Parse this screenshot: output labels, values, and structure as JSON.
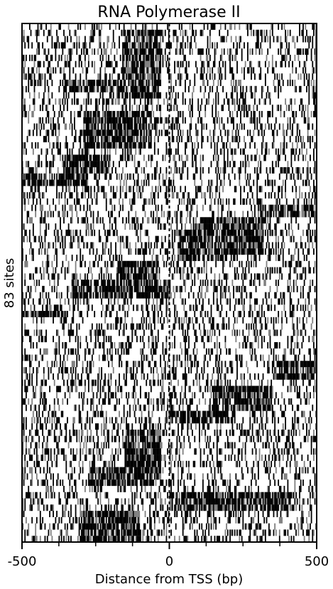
{
  "chart_data": {
    "type": "heatmap",
    "title": "RNA Polymerase II",
    "xlabel": "Distance from TSS (bp)",
    "ylabel": "83 sites",
    "xlim": [
      -500,
      500
    ],
    "x_ticks": [
      -500,
      0,
      500
    ],
    "x_minor_ticks": [
      -375,
      -250,
      -125,
      125,
      250,
      375
    ],
    "n_sites": 83,
    "n_bins": 250,
    "grid": false,
    "colors": {
      "high": "#000000",
      "low": "#ffffff",
      "mid": "#808080"
    },
    "tss_line": 0,
    "enriched_regions": [
      {
        "rows": [
          1,
          12
        ],
        "x": [
          -160,
          -30
        ]
      },
      {
        "rows": [
          9,
          11
        ],
        "x": [
          -360,
          -100
        ]
      },
      {
        "rows": [
          14,
          20
        ],
        "x": [
          -290,
          -60
        ]
      },
      {
        "rows": [
          21,
          24
        ],
        "x": [
          -360,
          -200
        ]
      },
      {
        "rows": [
          24,
          26
        ],
        "x": [
          -500,
          -280
        ]
      },
      {
        "rows": [
          29,
          31
        ],
        "x": [
          300,
          500
        ]
      },
      {
        "rows": [
          31,
          37
        ],
        "x": [
          80,
          320
        ]
      },
      {
        "rows": [
          33,
          38
        ],
        "x": [
          30,
          180
        ]
      },
      {
        "rows": [
          38,
          41
        ],
        "x": [
          -180,
          -40
        ]
      },
      {
        "rows": [
          41,
          44
        ],
        "x": [
          -330,
          0
        ]
      },
      {
        "rows": [
          46,
          47
        ],
        "x": [
          -500,
          -350
        ]
      },
      {
        "rows": [
          54,
          57
        ],
        "x": [
          350,
          500
        ]
      },
      {
        "rows": [
          58,
          62
        ],
        "x": [
          150,
          350
        ]
      },
      {
        "rows": [
          62,
          64
        ],
        "x": [
          0,
          200
        ]
      },
      {
        "rows": [
          65,
          74
        ],
        "x": [
          -150,
          -30
        ]
      },
      {
        "rows": [
          71,
          74
        ],
        "x": [
          -270,
          -40
        ]
      },
      {
        "rows": [
          75,
          78
        ],
        "x": [
          0,
          420
        ]
      },
      {
        "rows": [
          78,
          83
        ],
        "x": [
          -300,
          -100
        ]
      }
    ]
  }
}
